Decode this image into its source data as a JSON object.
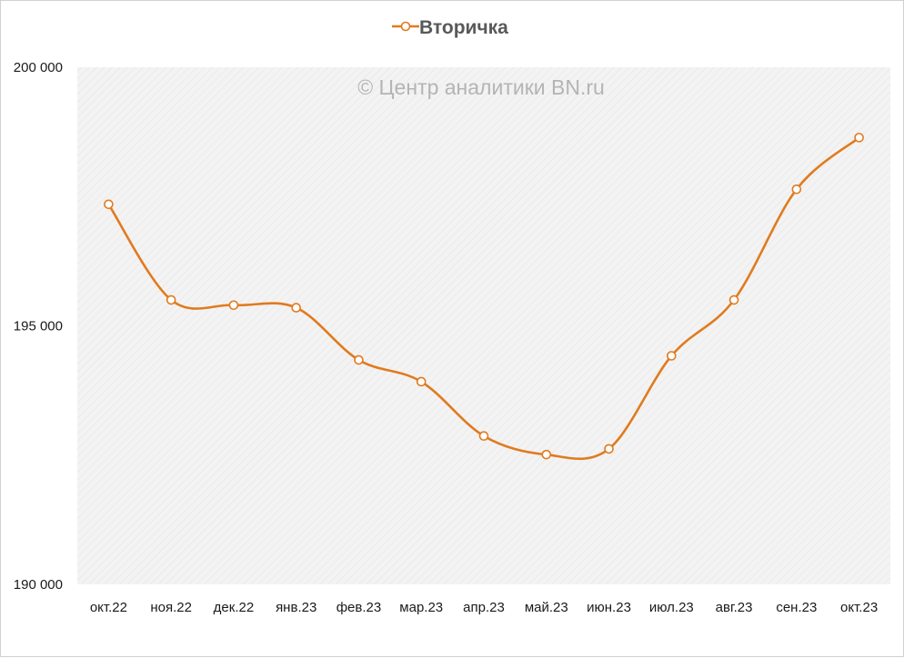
{
  "chart_data": {
    "type": "line",
    "categories": [
      "окт.22",
      "ноя.22",
      "дек.22",
      "янв.23",
      "фев.23",
      "мар.23",
      "апр.23",
      "май.23",
      "июн.23",
      "июл.23",
      "авг.23",
      "сен.23",
      "окт.23"
    ],
    "series": [
      {
        "name": "Вторичка",
        "values": [
          197350,
          195500,
          195400,
          195350,
          194340,
          193920,
          192870,
          192510,
          192620,
          194420,
          195500,
          197640,
          198640
        ]
      }
    ],
    "ylim": [
      190000,
      200000
    ],
    "yticks": [
      190000,
      195000,
      200000
    ],
    "ytick_labels": [
      "190 000",
      "195 000",
      "200 000"
    ],
    "grid": false,
    "smooth": true,
    "legend_position": "top",
    "watermark": "© Центр аналитики BN.ru",
    "colors": {
      "line": "#E07B1F",
      "marker_fill": "#ffffff",
      "plot_background": "#f2f2f2"
    }
  }
}
